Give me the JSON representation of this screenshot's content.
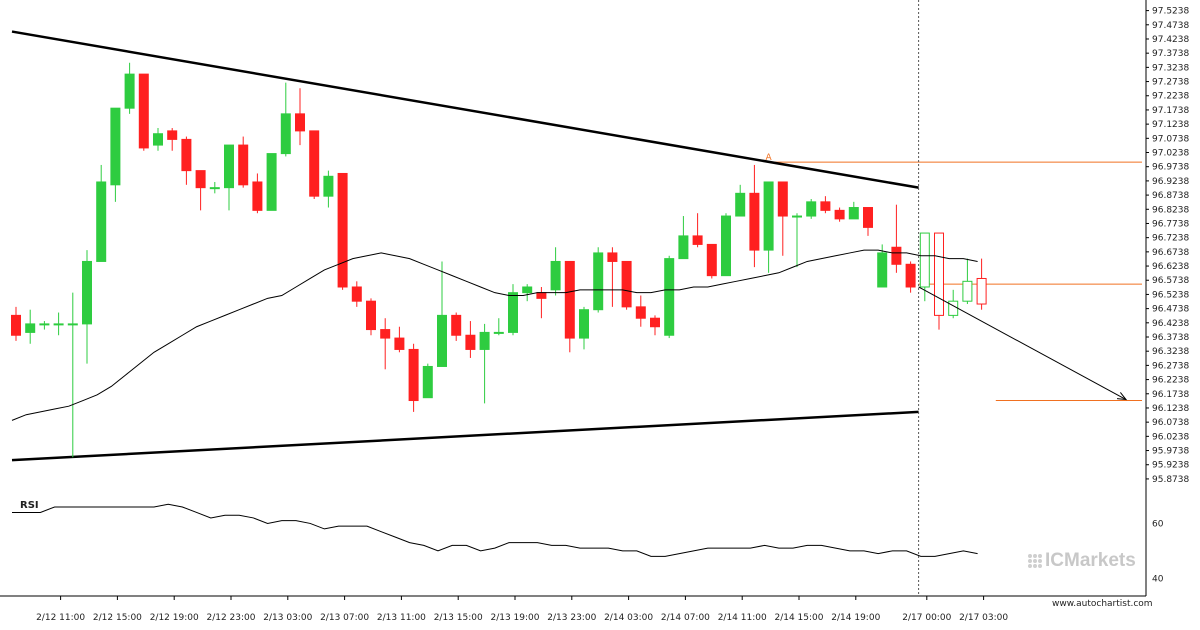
{
  "chart_data": {
    "type": "candlestick",
    "x_labels": [
      "2/12 11:00",
      "2/12 15:00",
      "2/12 19:00",
      "2/12 23:00",
      "2/13 03:00",
      "2/13 07:00",
      "2/13 11:00",
      "2/13 15:00",
      "2/13 19:00",
      "2/13 23:00",
      "2/14 03:00",
      "2/14 07:00",
      "2/14 11:00",
      "2/14 15:00",
      "2/14 19:00",
      "2/17 00:00",
      "2/17 03:00"
    ],
    "y_ticks": [
      "97.5238",
      "97.4738",
      "97.4238",
      "97.3738",
      "97.3238",
      "97.2738",
      "97.2238",
      "97.1738",
      "97.1238",
      "97.0738",
      "97.0238",
      "96.9738",
      "96.9238",
      "96.8738",
      "96.8238",
      "96.7738",
      "96.7238",
      "96.6738",
      "96.6238",
      "96.5738",
      "96.5238",
      "96.4738",
      "96.4238",
      "96.3738",
      "96.3238",
      "96.2738",
      "96.2238",
      "96.1738",
      "96.1238",
      "96.0738",
      "96.0238",
      "95.9738",
      "95.9238",
      "95.8738"
    ],
    "ylim": [
      95.87,
      97.54
    ],
    "candles": [
      [
        96.45,
        96.38,
        96.48,
        96.36
      ],
      [
        96.39,
        96.42,
        96.47,
        96.35
      ],
      [
        96.42,
        96.42,
        96.43,
        96.4
      ],
      [
        96.42,
        96.42,
        96.46,
        96.38
      ],
      [
        96.42,
        96.42,
        96.53,
        95.95
      ],
      [
        96.42,
        96.64,
        96.68,
        96.28
      ],
      [
        96.64,
        96.92,
        96.98,
        96.64
      ],
      [
        96.91,
        97.18,
        97.18,
        96.85
      ],
      [
        97.18,
        97.3,
        97.34,
        97.16
      ],
      [
        97.3,
        97.04,
        97.3,
        97.03
      ],
      [
        97.05,
        97.09,
        97.11,
        97.03
      ],
      [
        97.1,
        97.07,
        97.11,
        97.03
      ],
      [
        97.07,
        96.96,
        97.08,
        96.91
      ],
      [
        96.96,
        96.9,
        96.96,
        96.82
      ],
      [
        96.9,
        96.9,
        96.92,
        96.88
      ],
      [
        96.9,
        97.05,
        97.05,
        96.82
      ],
      [
        97.05,
        96.91,
        97.08,
        96.9
      ],
      [
        96.92,
        96.82,
        96.95,
        96.81
      ],
      [
        96.82,
        97.02,
        97.02,
        96.82
      ],
      [
        97.02,
        97.16,
        97.27,
        97.01
      ],
      [
        97.16,
        97.1,
        97.25,
        97.05
      ],
      [
        97.1,
        96.87,
        97.1,
        96.86
      ],
      [
        96.87,
        96.94,
        96.96,
        96.83
      ],
      [
        96.95,
        96.55,
        96.95,
        96.54
      ],
      [
        96.55,
        96.5,
        96.57,
        96.48
      ],
      [
        96.5,
        96.4,
        96.51,
        96.38
      ],
      [
        96.4,
        96.37,
        96.44,
        96.26
      ],
      [
        96.37,
        96.33,
        96.41,
        96.32
      ],
      [
        96.33,
        96.15,
        96.35,
        96.11
      ],
      [
        96.16,
        96.27,
        96.28,
        96.16
      ],
      [
        96.27,
        96.45,
        96.64,
        96.27
      ],
      [
        96.45,
        96.38,
        96.46,
        96.36
      ],
      [
        96.38,
        96.33,
        96.43,
        96.3
      ],
      [
        96.33,
        96.39,
        96.42,
        96.14
      ],
      [
        96.39,
        96.39,
        96.44,
        96.38
      ],
      [
        96.39,
        96.53,
        96.56,
        96.38
      ],
      [
        96.53,
        96.55,
        96.56,
        96.5
      ],
      [
        96.53,
        96.51,
        96.55,
        96.44
      ],
      [
        96.54,
        96.64,
        96.69,
        96.52
      ],
      [
        96.64,
        96.37,
        96.64,
        96.32
      ],
      [
        96.37,
        96.47,
        96.48,
        96.33
      ],
      [
        96.47,
        96.67,
        96.69,
        96.46
      ],
      [
        96.67,
        96.64,
        96.69,
        96.48
      ],
      [
        96.64,
        96.48,
        96.64,
        96.47
      ],
      [
        96.48,
        96.44,
        96.52,
        96.41
      ],
      [
        96.44,
        96.41,
        96.45,
        96.38
      ],
      [
        96.38,
        96.65,
        96.66,
        96.37
      ],
      [
        96.65,
        96.73,
        96.8,
        96.65
      ],
      [
        96.73,
        96.7,
        96.81,
        96.69
      ],
      [
        96.7,
        96.59,
        96.7,
        96.58
      ],
      [
        96.59,
        96.8,
        96.81,
        96.59
      ],
      [
        96.8,
        96.88,
        96.91,
        96.8
      ],
      [
        96.88,
        96.68,
        96.98,
        96.62
      ],
      [
        96.68,
        96.92,
        96.92,
        96.6
      ],
      [
        96.92,
        96.8,
        96.92,
        96.66
      ],
      [
        96.8,
        96.8,
        96.81,
        96.62
      ],
      [
        96.8,
        96.85,
        96.86,
        96.79
      ],
      [
        96.85,
        96.82,
        96.87,
        96.81
      ],
      [
        96.82,
        96.79,
        96.83,
        96.78
      ],
      [
        96.79,
        96.83,
        96.85,
        96.79
      ],
      [
        96.83,
        96.76,
        96.83,
        96.73
      ],
      [
        96.55,
        96.67,
        96.7,
        96.55
      ],
      [
        96.69,
        96.63,
        96.84,
        96.6
      ],
      [
        96.63,
        96.55,
        96.64,
        96.53
      ],
      [
        96.55,
        96.74,
        96.74,
        96.5
      ],
      [
        96.74,
        96.45,
        96.74,
        96.4
      ],
      [
        96.45,
        96.5,
        96.54,
        96.44
      ],
      [
        96.5,
        96.57,
        96.65,
        96.49
      ],
      [
        96.58,
        96.49,
        96.65,
        96.47
      ]
    ],
    "moving_average": [
      96.08,
      96.1,
      96.11,
      96.12,
      96.13,
      96.15,
      96.17,
      96.2,
      96.24,
      96.28,
      96.32,
      96.35,
      96.38,
      96.41,
      96.43,
      96.45,
      96.47,
      96.49,
      96.51,
      96.52,
      96.55,
      96.58,
      96.61,
      96.63,
      96.65,
      96.66,
      96.67,
      96.66,
      96.65,
      96.63,
      96.61,
      96.59,
      96.57,
      96.55,
      96.53,
      96.52,
      96.52,
      96.53,
      96.53,
      96.53,
      96.54,
      96.54,
      96.54,
      96.54,
      96.53,
      96.53,
      96.54,
      96.54,
      96.55,
      96.55,
      96.56,
      96.57,
      96.58,
      96.59,
      96.6,
      96.62,
      96.64,
      96.65,
      96.66,
      96.67,
      96.68,
      96.68,
      96.67,
      96.67,
      96.66,
      96.66,
      96.65,
      96.65,
      96.64
    ],
    "triangle": {
      "upper": [
        [
          0,
          97.45
        ],
        [
          64,
          96.9
        ]
      ],
      "lower": [
        [
          0,
          95.94
        ],
        [
          64,
          96.11
        ]
      ]
    },
    "projection_arrow": [
      [
        64,
        96.55
      ],
      [
        79,
        96.15
      ]
    ],
    "level_lines": [
      96.99,
      96.56,
      96.15
    ],
    "marker_label": "A",
    "rsi": {
      "label": "RSI",
      "ticks": [
        "60",
        "40"
      ],
      "ylim": [
        35,
        70
      ],
      "values": [
        64,
        64,
        64,
        66,
        66,
        66,
        66,
        66,
        66,
        66,
        66,
        67,
        66,
        64,
        62,
        63,
        63,
        62,
        60,
        61,
        61,
        60,
        58,
        59,
        59,
        59,
        57,
        55,
        53,
        52,
        50,
        52,
        52,
        50,
        51,
        53,
        53,
        53,
        52,
        52,
        51,
        51,
        51,
        50,
        50,
        48,
        48,
        49,
        50,
        51,
        51,
        51,
        51,
        52,
        51,
        51,
        52,
        52,
        51,
        50,
        50,
        49,
        50,
        50,
        48,
        48,
        49,
        50,
        49
      ]
    },
    "colors": {
      "up": "#2ecc40",
      "down": "#ff2020",
      "ma": "#000000",
      "pattern": "#000000",
      "level": "#f07020",
      "projection_up": "#2ecc40",
      "projection_down": "#ff2020"
    }
  },
  "branding": {
    "logo_text": "ICMarkets",
    "credit": "www.autochartist.com"
  }
}
